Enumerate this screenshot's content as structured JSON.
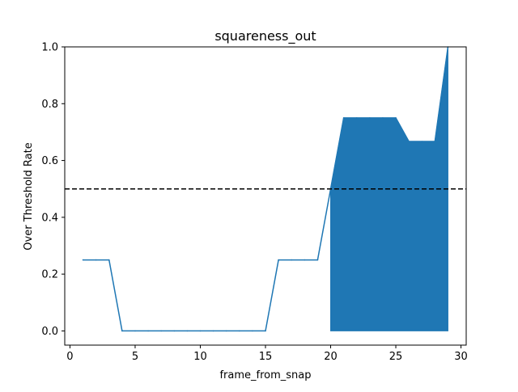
{
  "chart_data": {
    "type": "line",
    "title": "squareness_out",
    "xlabel": "frame_from_snap",
    "ylabel": "Over Threshold Rate",
    "xlim": [
      -0.4,
      30.4
    ],
    "ylim": [
      -0.05,
      1.0
    ],
    "xticks": [
      0,
      5,
      10,
      15,
      20,
      25,
      30
    ],
    "xtick_labels": [
      "0",
      "5",
      "10",
      "15",
      "20",
      "25",
      "30"
    ],
    "yticks": [
      0.0,
      0.2,
      0.4,
      0.6,
      0.8,
      1.0
    ],
    "ytick_labels": [
      "0.0",
      "0.2",
      "0.4",
      "0.6",
      "0.8",
      "1.0"
    ],
    "grid": false,
    "series": [
      {
        "color": "#1f77b4",
        "x": [
          1,
          2,
          3,
          4,
          5,
          6,
          7,
          8,
          9,
          10,
          11,
          12,
          13,
          14,
          15,
          16,
          17,
          18,
          19,
          20,
          21,
          22,
          23,
          24,
          25,
          26,
          27,
          28,
          29
        ],
        "values": [
          0.25,
          0.25,
          0.25,
          0.0,
          0.0,
          0.0,
          0.0,
          0.0,
          0.0,
          0.0,
          0.0,
          0.0,
          0.0,
          0.0,
          0.0,
          0.25,
          0.25,
          0.25,
          0.25,
          0.5,
          0.75,
          0.75,
          0.75,
          0.75,
          0.75,
          0.667,
          0.667,
          0.667,
          1.0
        ]
      }
    ],
    "fill": {
      "color": "#1f77b4",
      "x_start": 20,
      "x_end": 29,
      "lower": 0.0
    },
    "threshold_line": {
      "y": 0.5,
      "color": "#000000",
      "style": "dashed"
    }
  }
}
